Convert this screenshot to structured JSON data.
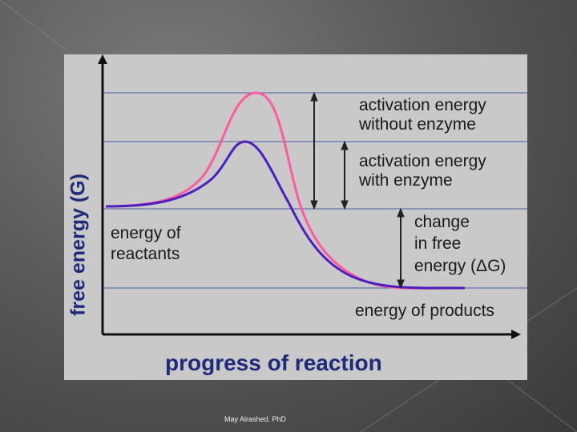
{
  "diagram": {
    "y_axis_label": "free energy (G)",
    "x_axis_label": "progress of reaction",
    "labels": {
      "activation_without_line1": "activation energy",
      "activation_without_line2": "without enzyme",
      "activation_with_line1": "activation energy",
      "activation_with_line2": "with enzyme",
      "change_line1": "change",
      "change_line2": "in free",
      "change_line3": "energy (ΔG)",
      "reactants_line1": "energy of",
      "reactants_line2": "reactants",
      "products": "energy of products"
    },
    "colors": {
      "curve_without_enzyme": "#ff5a9e",
      "curve_with_enzyme": "#4b1fbf",
      "guide_lines": "#4a5aa8",
      "axis_label": "#1f2a7a"
    }
  },
  "footer": {
    "author": "May Alrashed. PhD"
  }
}
